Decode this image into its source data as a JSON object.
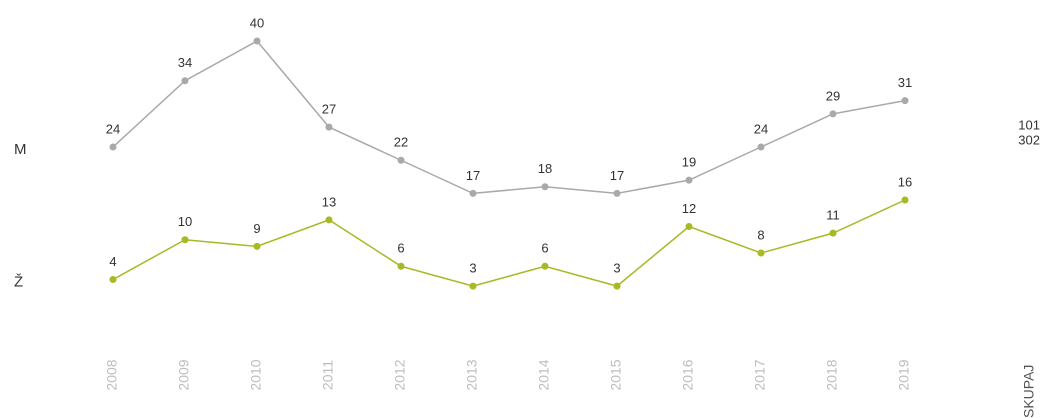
{
  "chart_data": {
    "type": "line",
    "categories": [
      "2008",
      "2009",
      "2010",
      "2011",
      "2012",
      "2013",
      "2014",
      "2015",
      "2016",
      "2017",
      "2018",
      "2019"
    ],
    "series": [
      {
        "name": "M",
        "color": "#a9a9a9",
        "values": [
          24,
          34,
          40,
          27,
          22,
          17,
          18,
          17,
          19,
          24,
          29,
          31
        ],
        "total": 302
      },
      {
        "name": "Ž",
        "color": "#a8b923",
        "values": [
          4,
          10,
          9,
          13,
          6,
          3,
          6,
          3,
          12,
          8,
          11,
          16
        ],
        "total": 101
      }
    ],
    "total_label": "SKUPAJ",
    "ylim": [
      0,
      40
    ]
  }
}
